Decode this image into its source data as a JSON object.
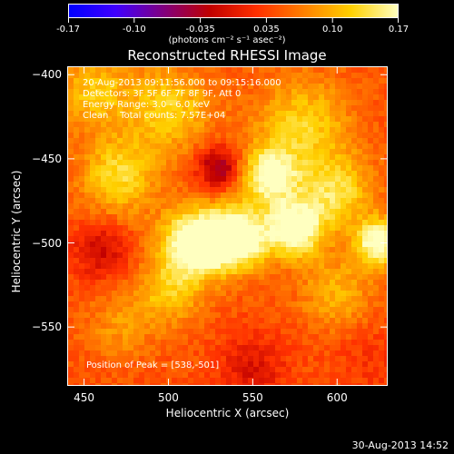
{
  "chart_data": {
    "type": "heatmap",
    "title": "Reconstructed RHESSI Image",
    "xlabel": "Heliocentric X (arcsec)",
    "ylabel": "Heliocentric Y (arcsec)",
    "xlim": [
      440,
      630
    ],
    "ylim": [
      -585,
      -395
    ],
    "x_ticks": [
      450,
      500,
      550,
      600
    ],
    "y_ticks": [
      -400,
      -450,
      -500,
      -550
    ],
    "colorbar": {
      "range": [
        -0.17,
        0.17
      ],
      "ticks": [
        "-0.17",
        "-0.10",
        "-0.035",
        "0.035",
        "0.10",
        "0.17"
      ],
      "units": "(photons cm⁻² s⁻¹ asec⁻²)",
      "colormap": [
        "#0000ff",
        "#4000ff",
        "#800080",
        "#c00000",
        "#ff3000",
        "#ff8000",
        "#ffd000",
        "#ffffc0"
      ]
    },
    "annotations": {
      "time": "20-Aug-2013 09:11:56.000 to 09:15:16.000",
      "detectors": "Detectors: 3F 5F 6F 7F 8F 9F, Att 0",
      "energy": "Energy Range: 3.0 - 6.0 keV",
      "clean": "Clean    Total counts: 7.57E+04",
      "peak": "Position of Peak = [538,-501]"
    },
    "peak": {
      "x": 538,
      "y": -501
    },
    "sources": [
      {
        "x": 540,
        "y": -497,
        "sigma": 13,
        "amp": 0.17
      },
      {
        "x": 515,
        "y": -500,
        "sigma": 14,
        "amp": 0.16
      },
      {
        "x": 575,
        "y": -492,
        "sigma": 12,
        "amp": 0.15
      },
      {
        "x": 560,
        "y": -460,
        "sigma": 12,
        "amp": 0.13
      },
      {
        "x": 625,
        "y": -500,
        "sigma": 10,
        "amp": 0.14
      },
      {
        "x": 470,
        "y": -460,
        "sigma": 16,
        "amp": 0.09
      },
      {
        "x": 500,
        "y": -420,
        "sigma": 18,
        "amp": 0.08
      },
      {
        "x": 580,
        "y": -430,
        "sigma": 20,
        "amp": 0.08
      },
      {
        "x": 455,
        "y": -410,
        "sigma": 15,
        "amp": 0.07
      },
      {
        "x": 600,
        "y": -470,
        "sigma": 15,
        "amp": 0.09
      },
      {
        "x": 500,
        "y": -530,
        "sigma": 14,
        "amp": 0.07
      },
      {
        "x": 600,
        "y": -530,
        "sigma": 15,
        "amp": 0.06
      },
      {
        "x": 470,
        "y": -550,
        "sigma": 14,
        "amp": 0.04
      },
      {
        "x": 530,
        "y": -455,
        "sigma": 9,
        "amp": -0.1
      },
      {
        "x": 460,
        "y": -505,
        "sigma": 12,
        "amp": -0.06
      },
      {
        "x": 550,
        "y": -575,
        "sigma": 14,
        "amp": -0.05
      },
      {
        "x": 620,
        "y": -570,
        "sigma": 15,
        "amp": -0.02
      }
    ]
  },
  "footer": {
    "date": "30-Aug-2013 14:52"
  }
}
